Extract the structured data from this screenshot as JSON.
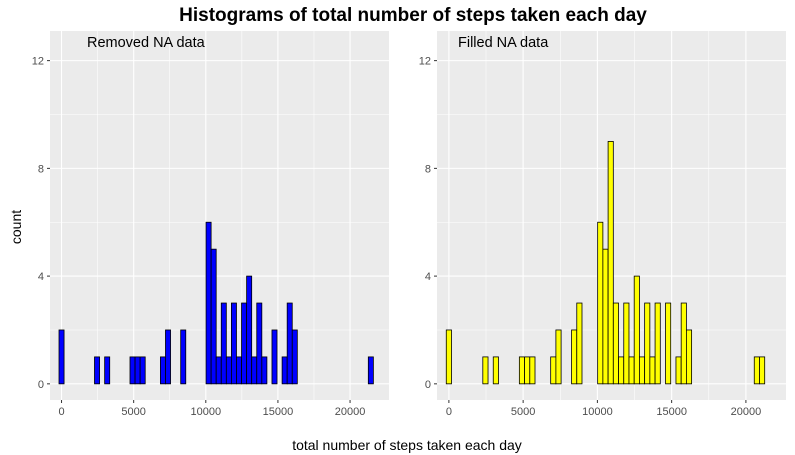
{
  "figure": {
    "title": "Histograms of total number of steps taken each day",
    "xlabel": "total number of steps taken each day",
    "ylabel": "count"
  },
  "chart_data": [
    {
      "type": "bar",
      "title": "",
      "annotation": "Removed NA data",
      "xlabel": "total number of steps taken each day",
      "ylabel": "count",
      "fill_color": "#0000ff",
      "bin_width": 351.5,
      "bin_start": -175.75,
      "counts": [
        2,
        0,
        0,
        0,
        0,
        0,
        0,
        1,
        0,
        1,
        0,
        0,
        0,
        0,
        1,
        1,
        1,
        0,
        0,
        0,
        1,
        2,
        0,
        0,
        2,
        0,
        0,
        0,
        0,
        6,
        5,
        1,
        3,
        1,
        3,
        1,
        3,
        4,
        1,
        3,
        1,
        0,
        2,
        0,
        1,
        3,
        2,
        0,
        0,
        0,
        0,
        0,
        0,
        0,
        0,
        0,
        0,
        0,
        0,
        0,
        0,
        1
      ],
      "xlim": [
        -800,
        22700
      ],
      "ylim": [
        -0.6,
        13.1
      ],
      "x_ticks": [
        0,
        5000,
        10000,
        15000,
        20000
      ],
      "y_ticks": [
        0,
        4,
        8,
        12
      ]
    },
    {
      "type": "bar",
      "title": "",
      "annotation": "Filled NA data",
      "xlabel": "total number of steps taken each day",
      "ylabel": "count",
      "fill_color": "#ffff00",
      "bin_width": 351.5,
      "bin_start": -175.75,
      "counts": [
        2,
        0,
        0,
        0,
        0,
        0,
        0,
        1,
        0,
        1,
        0,
        0,
        0,
        0,
        1,
        1,
        1,
        0,
        0,
        0,
        1,
        2,
        0,
        0,
        2,
        3,
        0,
        0,
        0,
        6,
        5,
        9,
        3,
        1,
        3,
        1,
        4,
        1,
        3,
        1,
        3,
        0,
        3,
        0,
        1,
        3,
        2,
        0,
        0,
        0,
        0,
        0,
        0,
        0,
        0,
        0,
        0,
        0,
        0,
        1,
        1
      ],
      "xlim": [
        -800,
        22700
      ],
      "ylim": [
        -0.6,
        13.1
      ],
      "x_ticks": [
        0,
        5000,
        10000,
        15000,
        20000
      ],
      "y_ticks": [
        0,
        4,
        8,
        12
      ]
    }
  ]
}
